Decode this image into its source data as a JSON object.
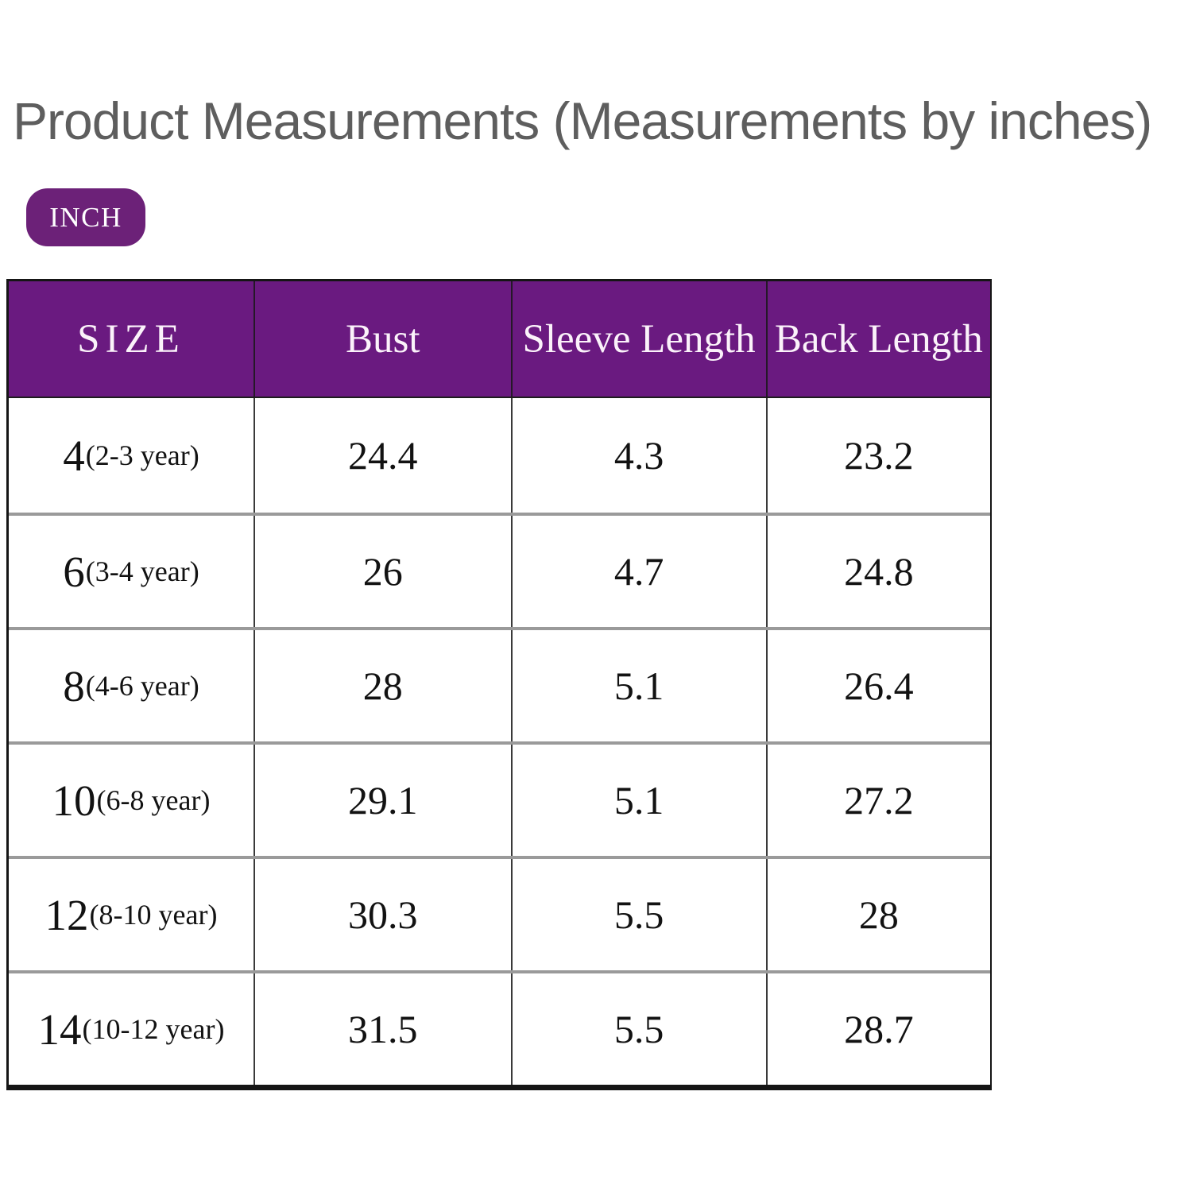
{
  "title": "Product Measurements (Measurements by inches)",
  "unit_badge": {
    "label": "INCH"
  },
  "colors": {
    "header_bg": "#6A1A80",
    "badge_bg": "#6C2178",
    "title_text": "#5E5E5E",
    "header_text": "#FBF2FA",
    "body_text": "#121212",
    "row_separator": "#9A9A9A",
    "col_divider": "#3A3A3A",
    "outer_border": "#151515"
  },
  "chart_data": {
    "type": "table",
    "title": "Product Measurements (Measurements by inches)",
    "unit": "inches",
    "columns": [
      "SIZE",
      "Bust",
      "Sleeve Length",
      "Back Length"
    ],
    "rows": [
      {
        "size": "4",
        "age": "(2-3 year)",
        "bust": "24.4",
        "sleeve": "4.3",
        "back": "23.2"
      },
      {
        "size": "6",
        "age": "(3-4 year)",
        "bust": "26",
        "sleeve": "4.7",
        "back": "24.8"
      },
      {
        "size": "8",
        "age": "(4-6 year)",
        "bust": "28",
        "sleeve": "5.1",
        "back": "26.4"
      },
      {
        "size": "10",
        "age": "(6-8 year)",
        "bust": "29.1",
        "sleeve": "5.1",
        "back": "27.2"
      },
      {
        "size": "12",
        "age": "(8-10 year)",
        "bust": "30.3",
        "sleeve": "5.5",
        "back": "28"
      },
      {
        "size": "14",
        "age": "(10-12 year)",
        "bust": "31.5",
        "sleeve": "5.5",
        "back": "28.7"
      }
    ]
  }
}
